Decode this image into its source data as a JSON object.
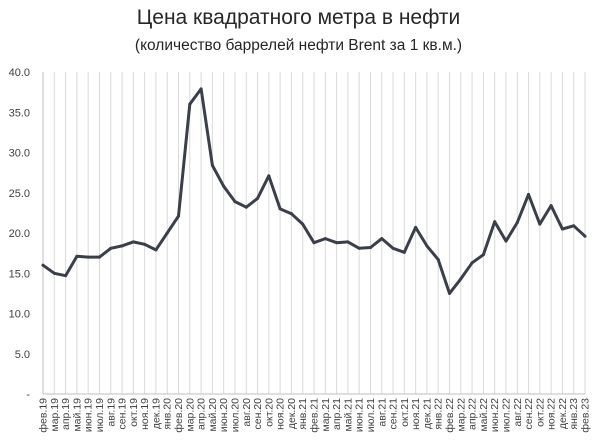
{
  "chart_data": {
    "type": "line",
    "title": "Цена квадратного метра в нефти",
    "subtitle": "(количество баррелей нефти Brent за 1 кв.м.)",
    "ylim": [
      0,
      40
    ],
    "yticks": [
      "-",
      "5.0",
      "10.0",
      "15.0",
      "20.0",
      "25.0",
      "30.0",
      "35.0",
      "40.0"
    ],
    "ytick_values": [
      0,
      5,
      10,
      15,
      20,
      25,
      30,
      35,
      40
    ],
    "grid": "vertical",
    "line_color": "#3a3f4a",
    "categories": [
      "фев.19",
      "мар.19",
      "апр.19",
      "май.19",
      "июн.19",
      "июл.19",
      "авг.19",
      "сен.19",
      "окт.19",
      "ноя.19",
      "дек.19",
      "янв.20",
      "фев.20",
      "мар.20",
      "апр.20",
      "май.20",
      "июн.20",
      "июл.20",
      "авг.20",
      "сен.20",
      "окт.20",
      "ноя.20",
      "дек.20",
      "янв.21",
      "фев.21",
      "мар.21",
      "апр.21",
      "май.21",
      "июн.21",
      "июл.21",
      "авг.21",
      "сен.21",
      "окт.21",
      "ноя.21",
      "дек.21",
      "янв.22",
      "фев.22",
      "мар.22",
      "апр.22",
      "май.22",
      "июн.22",
      "июл.22",
      "авг.22",
      "сен.22",
      "окт.22",
      "ноя.22",
      "дек.22",
      "янв.23",
      "фев.23"
    ],
    "values": [
      16.0,
      15.0,
      14.7,
      17.1,
      17.0,
      17.0,
      18.1,
      18.4,
      18.9,
      18.6,
      17.9,
      20.0,
      22.1,
      36.0,
      37.9,
      28.4,
      25.8,
      23.9,
      23.2,
      24.3,
      27.1,
      23.0,
      22.4,
      21.1,
      18.8,
      19.3,
      18.8,
      18.9,
      18.1,
      18.2,
      19.3,
      18.1,
      17.6,
      20.7,
      18.4,
      16.7,
      12.5,
      14.3,
      16.3,
      17.3,
      21.4,
      19.0,
      21.3,
      24.8,
      21.1,
      23.4,
      20.5,
      20.9,
      19.6
    ]
  }
}
